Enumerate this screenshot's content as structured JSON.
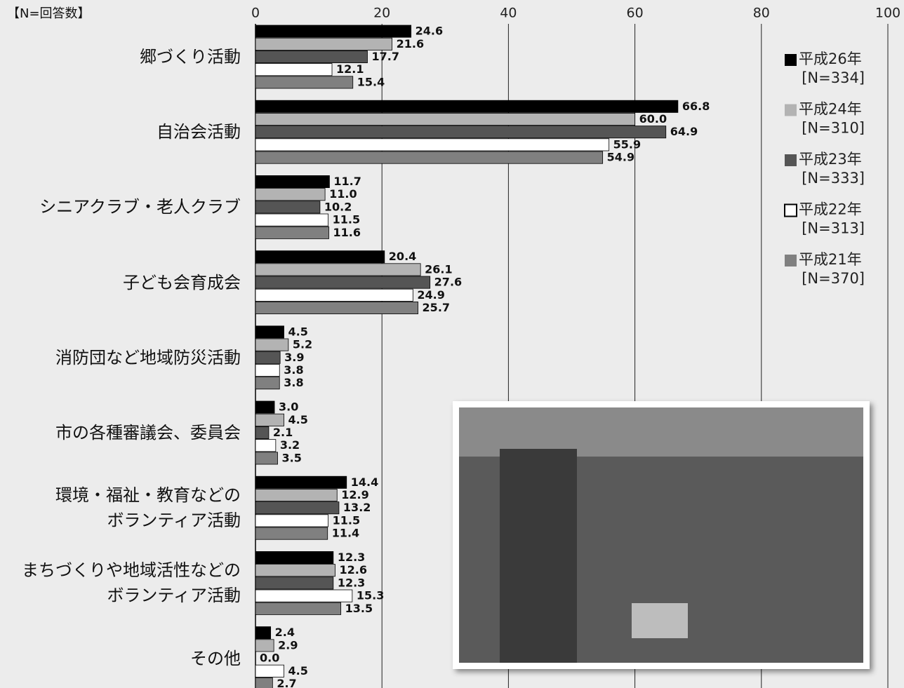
{
  "chart_data": {
    "type": "bar",
    "orientation": "horizontal",
    "note": "【N=回答数】",
    "categories": [
      "郷づくり活動",
      "自治会活動",
      "シニアクラブ・老人クラブ",
      "子ども会育成会",
      "消防団など地域防災活動",
      "市の各種審議会、委員会",
      "環境・福祉・教育などの\nボランティア活動",
      "まちづくりや地域活性などの\nボランティア活動",
      "その他"
    ],
    "series": [
      {
        "name": "平成26年",
        "n_label": "[N=334]",
        "color": "#000000",
        "values": [
          24.6,
          66.8,
          11.7,
          20.4,
          4.5,
          3.0,
          14.4,
          12.3,
          2.4
        ],
        "value_labels": [
          "24.6",
          "66.8",
          "11.7",
          "20.4",
          "4.5",
          "3.0",
          "14.4",
          "12.3",
          "2.4"
        ]
      },
      {
        "name": "平成24年",
        "n_label": "[N=310]",
        "color": "#b3b3b3",
        "values": [
          21.6,
          60.0,
          11.0,
          26.1,
          5.2,
          4.5,
          12.9,
          12.6,
          2.9
        ],
        "value_labels": [
          "21.6",
          "60.0",
          "11.0",
          "26.1",
          "5.2",
          "4.5",
          "12.9",
          "12.6",
          "2.9"
        ]
      },
      {
        "name": "平成23年",
        "n_label": "[N=333]",
        "color": "#555555",
        "values": [
          17.7,
          64.9,
          10.2,
          27.6,
          3.9,
          2.1,
          13.2,
          12.3,
          0.0
        ],
        "value_labels": [
          "17.7",
          "64.9",
          "10.2",
          "27.6",
          "3.9",
          "2.1",
          "13.2",
          "12.3",
          "0.0"
        ]
      },
      {
        "name": "平成22年",
        "n_label": "[N=313]",
        "color": "#ffffff",
        "values": [
          12.1,
          55.9,
          11.5,
          24.9,
          3.8,
          3.2,
          11.5,
          15.3,
          4.5
        ],
        "value_labels": [
          "12.1",
          "55.9",
          "11.5",
          "24.9",
          "3.8",
          "3.2",
          "11.5",
          "15.3",
          "4.5"
        ]
      },
      {
        "name": "平成21年",
        "n_label": "[N=370]",
        "color": "#808080",
        "values": [
          15.4,
          54.9,
          11.6,
          25.7,
          3.8,
          3.5,
          11.4,
          13.5,
          2.7
        ],
        "value_labels": [
          "15.4",
          "54.9",
          "11.6",
          "25.7",
          "3.8",
          "3.5",
          "11.4",
          "13.5",
          "2.7"
        ]
      }
    ],
    "xlim": [
      0,
      100
    ],
    "xticks": [
      0,
      20,
      40,
      60,
      80,
      100
    ],
    "grid": true,
    "legend": "right"
  }
}
